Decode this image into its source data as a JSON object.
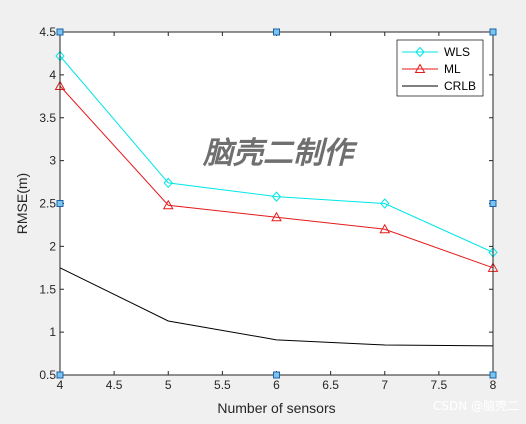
{
  "chart_data": {
    "type": "line",
    "x": [
      4,
      5,
      6,
      7,
      8
    ],
    "xlim": [
      4,
      8
    ],
    "ylim": [
      0.5,
      4.5
    ],
    "xticks": [
      "4",
      "4.5",
      "5",
      "5.5",
      "6",
      "6.5",
      "7",
      "7.5",
      "8"
    ],
    "yticks": [
      "0.5",
      "1",
      "1.5",
      "2",
      "2.5",
      "3",
      "3.5",
      "4",
      "4.5"
    ],
    "xlabel": "Number of sensors",
    "ylabel": "RMSE(m)",
    "grid": false,
    "legend_position": "top-right",
    "series": [
      {
        "name": "WLS",
        "values": [
          4.22,
          2.74,
          2.58,
          2.5,
          1.93
        ],
        "color": "#00e6e6",
        "marker": "diamond"
      },
      {
        "name": "ML",
        "values": [
          3.87,
          2.48,
          2.34,
          2.2,
          1.75
        ],
        "color": "#e51a1a",
        "marker": "triangle"
      },
      {
        "name": "CRLB",
        "values": [
          1.75,
          1.13,
          0.91,
          0.85,
          0.84
        ],
        "color": "#000000",
        "marker": "none"
      }
    ],
    "annotations": [
      "脑壳二制作"
    ]
  },
  "watermark": {
    "text": "CSDN @脑壳二"
  }
}
